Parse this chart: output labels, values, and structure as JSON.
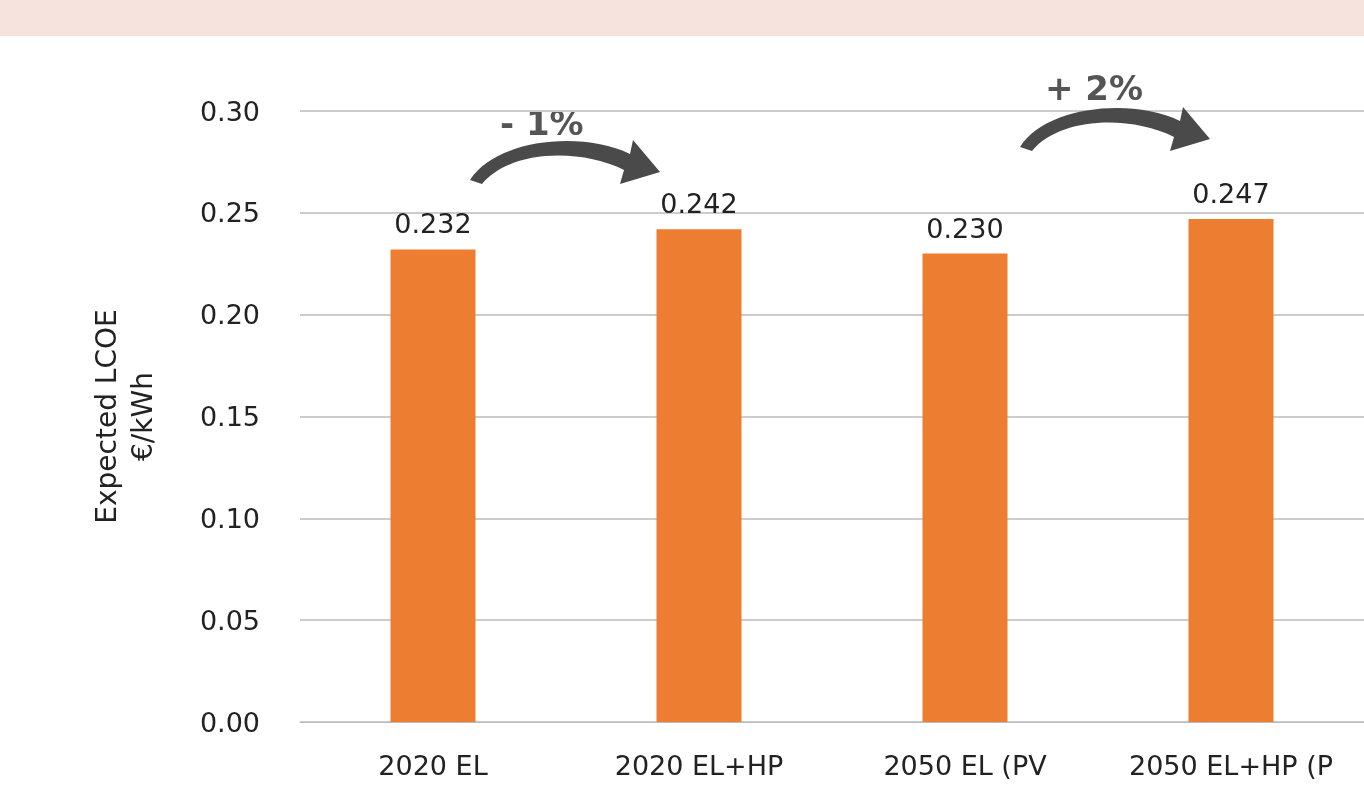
{
  "chart_data": {
    "type": "bar",
    "ylabel": "Expected LCOE\n€/kWh",
    "categories": [
      "2020 EL",
      "2020 EL+HP",
      "2050 EL (PV",
      "2050 EL+HP (P"
    ],
    "values": [
      0.232,
      0.242,
      0.23,
      0.247
    ],
    "value_labels": [
      "0.232",
      "0.242",
      "0.230",
      "0.247"
    ],
    "color": "#ed7d31",
    "ylim": [
      0,
      0.3
    ],
    "yticks": [
      {
        "value": 0,
        "label": "0.00"
      },
      {
        "value": 0.05,
        "label": "0.05"
      },
      {
        "value": 0.1,
        "label": "0.10"
      },
      {
        "value": 0.15,
        "label": "0.15"
      },
      {
        "value": 0.2,
        "label": "0.20"
      },
      {
        "value": 0.25,
        "label": "0.25"
      },
      {
        "value": 0.3,
        "label": "0.30"
      }
    ],
    "grid": "y",
    "annotations": [
      "- 1%",
      "+ 2%"
    ]
  }
}
